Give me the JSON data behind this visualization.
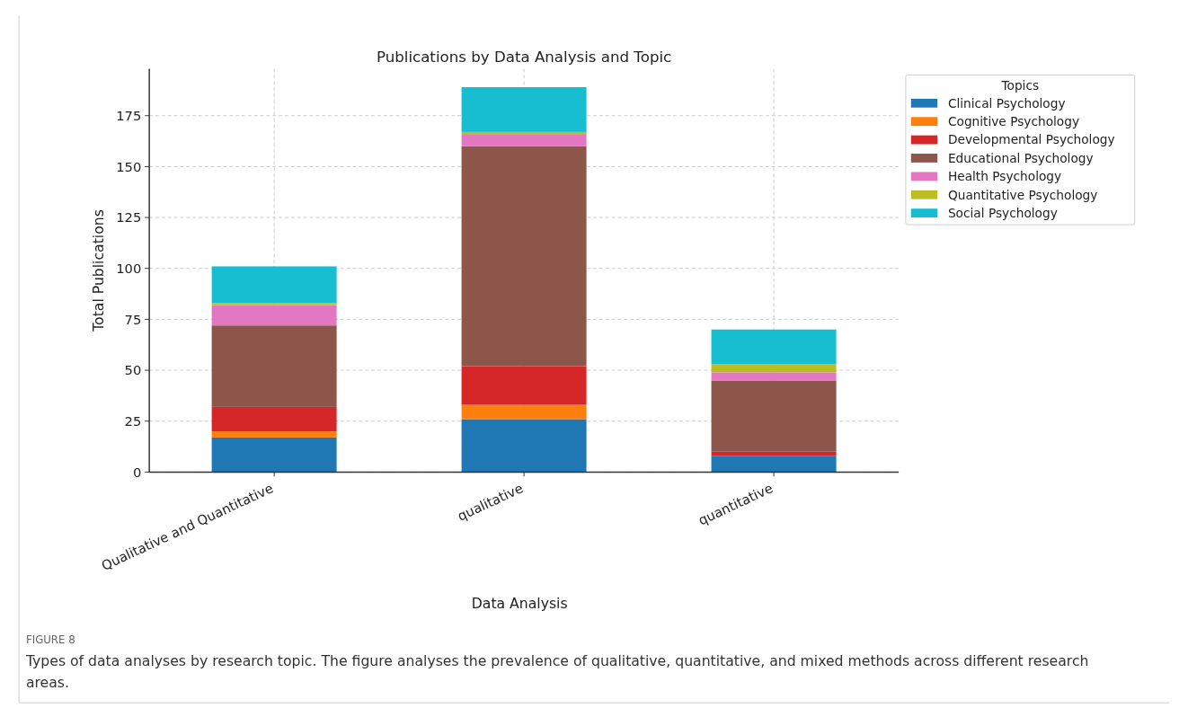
{
  "chart_data": {
    "type": "bar",
    "stacked": true,
    "title": "Publications by Data Analysis and Topic",
    "xlabel": "Data Analysis",
    "ylabel": "Total Publications",
    "legend_title": "Topics",
    "legend": "top right",
    "grid": true,
    "categories": [
      "Qualitative and Quantitative",
      "qualitative",
      "quantitative"
    ],
    "ylim": [
      0,
      198
    ],
    "yticks": [
      0,
      25,
      50,
      75,
      100,
      125,
      150,
      175
    ],
    "series": [
      {
        "name": "Clinical Psychology",
        "color": "#1f77b4",
        "values": [
          17,
          26,
          8
        ]
      },
      {
        "name": "Cognitive Psychology",
        "color": "#ff7f0e",
        "values": [
          3,
          7,
          0
        ]
      },
      {
        "name": "Developmental Psychology",
        "color": "#d62728",
        "values": [
          12,
          19,
          2
        ]
      },
      {
        "name": "Educational Psychology",
        "color": "#8c564b",
        "values": [
          40,
          108,
          35
        ]
      },
      {
        "name": "Health Psychology",
        "color": "#e377c2",
        "values": [
          10,
          6,
          4
        ]
      },
      {
        "name": "Quantitative Psychology",
        "color": "#bcbd22",
        "values": [
          1,
          1,
          4
        ]
      },
      {
        "name": "Social Psychology",
        "color": "#17becf",
        "values": [
          18,
          22,
          17
        ]
      }
    ],
    "annotations": [
      "FIGURE 8",
      "Types of data analyses by research topic. The figure analyses the prevalence of qualitative, quantitative, and mixed methods across different research areas."
    ]
  }
}
